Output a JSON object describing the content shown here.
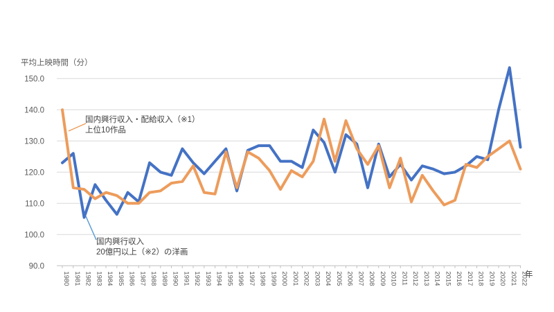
{
  "chart_data": {
    "type": "line",
    "title": "",
    "ylabel": "平均上映時間（分）",
    "xlabel": "年",
    "ylim": [
      90,
      150
    ],
    "yticks": [
      90,
      100,
      110,
      120,
      130,
      140,
      150
    ],
    "ytick_decimals": 1,
    "grid": true,
    "legend_position": "none (annotated with leader lines)",
    "x": [
      1980,
      1981,
      1982,
      1983,
      1984,
      1985,
      1986,
      1987,
      1988,
      1989,
      1990,
      1991,
      1992,
      1993,
      1994,
      1995,
      1996,
      1997,
      1998,
      1999,
      2000,
      2001,
      2002,
      2003,
      2004,
      2005,
      2006,
      2007,
      2008,
      2009,
      2010,
      2011,
      2012,
      2013,
      2014,
      2015,
      2016,
      2017,
      2018,
      2019,
      2020,
      2021,
      2022
    ],
    "series": [
      {
        "name": "国内興行収入・配給収入（※1）上位10作品",
        "color": "#ED9C5C",
        "values": [
          140,
          115,
          114.5,
          111.5,
          113.5,
          112.5,
          110,
          110,
          113.5,
          114,
          116.5,
          117,
          122,
          113.5,
          113,
          126.5,
          115,
          126.5,
          124.5,
          120.5,
          114.5,
          120.5,
          118.5,
          123.5,
          137,
          123.5,
          136.5,
          127.5,
          122.5,
          128.5,
          115,
          124.5,
          110.5,
          119,
          114,
          109.5,
          111,
          122.5,
          121.5,
          125,
          127.5,
          130,
          121
        ]
      },
      {
        "name": "国内興行収入20億円以上（※2）の洋画",
        "color": "#4472C4",
        "values": [
          123,
          126,
          105.5,
          116,
          111,
          106.5,
          113.5,
          110.5,
          123,
          120,
          119,
          127.5,
          123,
          119.5,
          123.5,
          127.5,
          114,
          127,
          128.5,
          128.5,
          123.5,
          123.5,
          121.5,
          133.5,
          129.5,
          120,
          132,
          129,
          115,
          129,
          118.5,
          122.5,
          117.5,
          122,
          121,
          119.5,
          120,
          122,
          125,
          124,
          140,
          153.5,
          128
        ]
      }
    ],
    "annotations": [
      {
        "lines": [
          "国内興行収入・配給収入（※1）",
          "上位10作品"
        ],
        "target_series": "上位10作品（オレンジ）"
      },
      {
        "lines": [
          "国内興行収入",
          "20億円以上（※2）の洋画"
        ],
        "target_series": "洋画（青）"
      }
    ],
    "colors": {
      "grid": "#D9D9D9",
      "axis": "#BFBFBF",
      "tick_text": "#595959",
      "annotation_text": "#404040",
      "leader1": "#ED9C5C",
      "leader2": "#5B9BD5"
    }
  }
}
